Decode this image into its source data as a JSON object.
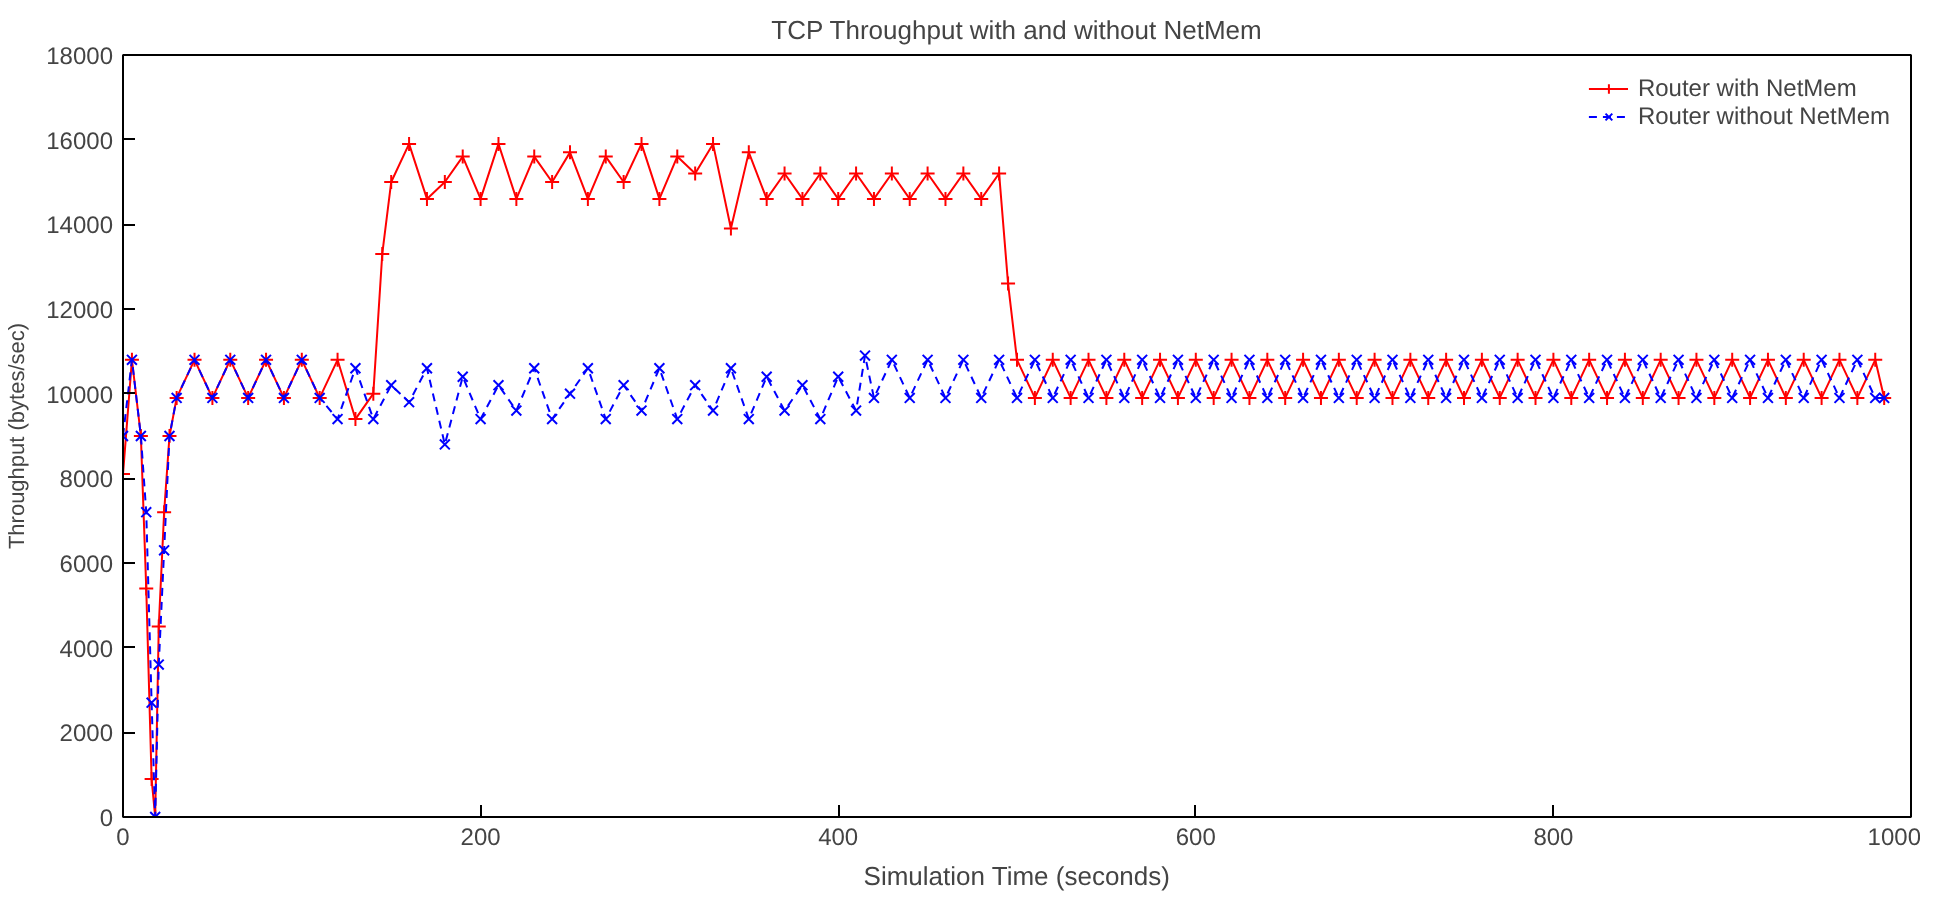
{
  "chart_data": {
    "type": "line",
    "title": "TCP Throughput with and without NetMem",
    "xlabel": "Simulation Time (seconds)",
    "ylabel": "Throughput (bytes/sec)",
    "xlim": [
      0,
      1000
    ],
    "ylim": [
      0,
      18000
    ],
    "xticks": [
      0,
      200,
      400,
      600,
      800,
      1000
    ],
    "yticks": [
      0,
      2000,
      4000,
      6000,
      8000,
      10000,
      12000,
      14000,
      16000,
      18000
    ],
    "grid": false,
    "legend": "top right",
    "series": [
      {
        "name": "Router with NetMem",
        "color": "#ff0000",
        "marker": "cross",
        "line_style": "solid",
        "x": [
          0,
          5,
          10,
          13,
          16,
          18,
          20,
          23,
          26,
          30,
          40,
          50,
          60,
          70,
          80,
          90,
          100,
          110,
          120,
          130,
          140,
          145,
          150,
          160,
          170,
          180,
          190,
          200,
          210,
          220,
          230,
          240,
          250,
          260,
          270,
          280,
          290,
          300,
          310,
          320,
          330,
          340,
          350,
          360,
          370,
          380,
          390,
          400,
          410,
          420,
          430,
          440,
          450,
          460,
          470,
          480,
          490,
          495,
          500,
          510,
          520,
          530,
          540,
          550,
          560,
          570,
          580,
          590,
          600,
          610,
          620,
          630,
          640,
          650,
          660,
          670,
          680,
          690,
          700,
          710,
          720,
          730,
          740,
          750,
          760,
          770,
          780,
          790,
          800,
          810,
          820,
          830,
          840,
          850,
          860,
          870,
          880,
          890,
          900,
          910,
          920,
          930,
          940,
          950,
          960,
          970,
          980,
          985
        ],
        "values": [
          8100,
          10800,
          9000,
          5400,
          900,
          0,
          4500,
          7200,
          9000,
          9900,
          10800,
          9900,
          10800,
          9900,
          10800,
          9900,
          10800,
          9900,
          10800,
          9400,
          10000,
          13300,
          15000,
          15900,
          14600,
          15000,
          15600,
          14600,
          15900,
          14600,
          15600,
          15000,
          15700,
          14600,
          15600,
          15000,
          15900,
          14600,
          15600,
          15200,
          15900,
          13900,
          15700,
          14600,
          15200,
          14600,
          15200,
          14600,
          15200,
          14600,
          15200,
          14600,
          15200,
          14600,
          15200,
          14600,
          15200,
          12600,
          10800,
          9900,
          10800,
          9900,
          10800,
          9900,
          10800,
          9900,
          10800,
          9900,
          10800,
          9900,
          10800,
          9900,
          10800,
          9900,
          10800,
          9900,
          10800,
          9900,
          10800,
          9900,
          10800,
          9900,
          10800,
          9900,
          10800,
          9900,
          10800,
          9900,
          10800,
          9900,
          10800,
          9900,
          10800,
          9900,
          10800,
          9900,
          10800,
          9900,
          10800,
          9900,
          10800,
          9900,
          10800,
          9900,
          10800,
          9900,
          10800,
          9900
        ]
      },
      {
        "name": "Router without NetMem",
        "color": "#0000ff",
        "marker": "x",
        "line_style": "dashed",
        "x": [
          0,
          5,
          10,
          13,
          16,
          18,
          20,
          23,
          26,
          30,
          40,
          50,
          60,
          70,
          80,
          90,
          100,
          110,
          120,
          130,
          140,
          150,
          160,
          170,
          180,
          190,
          200,
          210,
          220,
          230,
          240,
          250,
          260,
          270,
          280,
          290,
          300,
          310,
          320,
          330,
          340,
          350,
          360,
          370,
          380,
          390,
          400,
          410,
          415,
          420,
          430,
          440,
          450,
          460,
          470,
          480,
          490,
          500,
          510,
          520,
          530,
          540,
          550,
          560,
          570,
          580,
          590,
          600,
          610,
          620,
          630,
          640,
          650,
          660,
          670,
          680,
          690,
          700,
          710,
          720,
          730,
          740,
          750,
          760,
          770,
          780,
          790,
          800,
          810,
          820,
          830,
          840,
          850,
          860,
          870,
          880,
          890,
          900,
          910,
          920,
          930,
          940,
          950,
          960,
          970,
          980,
          985
        ],
        "values": [
          9000,
          10800,
          9000,
          7200,
          2700,
          0,
          3600,
          6300,
          9000,
          9900,
          10800,
          9900,
          10800,
          9900,
          10800,
          9900,
          10800,
          9900,
          9400,
          10600,
          9400,
          10200,
          9800,
          10600,
          8800,
          10400,
          9400,
          10200,
          9600,
          10600,
          9400,
          10000,
          10600,
          9400,
          10200,
          9600,
          10600,
          9400,
          10200,
          9600,
          10600,
          9400,
          10400,
          9600,
          10200,
          9400,
          10400,
          9600,
          10900,
          9900,
          10800,
          9900,
          10800,
          9900,
          10800,
          9900,
          10800,
          9900,
          10800,
          9900,
          10800,
          9900,
          10800,
          9900,
          10800,
          9900,
          10800,
          9900,
          10800,
          9900,
          10800,
          9900,
          10800,
          9900,
          10800,
          9900,
          10800,
          9900,
          10800,
          9900,
          10800,
          9900,
          10800,
          9900,
          10800,
          9900,
          10800,
          9900,
          10800,
          9900,
          10800,
          9900,
          10800,
          9900,
          10800,
          9900,
          10800,
          9900,
          10800,
          9900,
          10800,
          9900,
          10800,
          9900,
          10800,
          9900,
          9900
        ]
      }
    ]
  }
}
